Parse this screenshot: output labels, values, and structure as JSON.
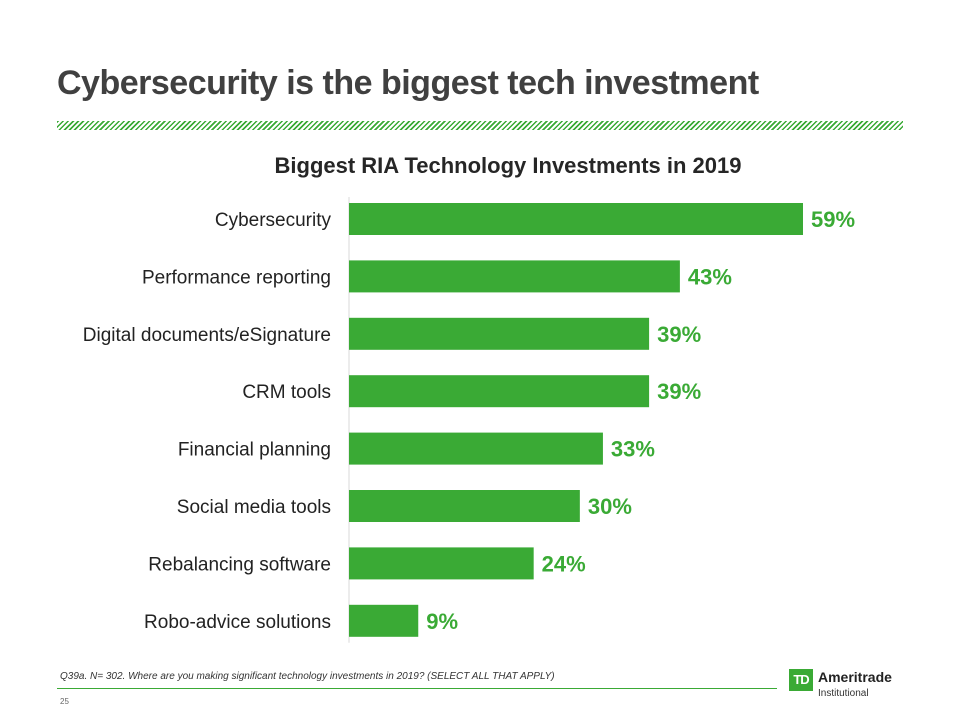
{
  "slide": {
    "title": "Cybersecurity is the biggest tech investment",
    "footnote": "Q39a. N= 302. Where are you making significant technology investments in 2019? (SELECT ALL THAT APPLY)",
    "page_number": "25"
  },
  "logo": {
    "mark": "TD",
    "name": "Ameritrade",
    "subtitle": "Institutional"
  },
  "colors": {
    "accent": "#3aaa35",
    "title": "#404040",
    "label": "#222222"
  },
  "chart_data": {
    "type": "bar",
    "orientation": "horizontal",
    "title": "Biggest RIA Technology Investments in 2019",
    "categories": [
      "Cybersecurity",
      "Performance reporting",
      "Digital documents/eSignature",
      "CRM tools",
      "Financial planning",
      "Social media tools",
      "Rebalancing software",
      "Robo-advice solutions"
    ],
    "values": [
      59,
      43,
      39,
      39,
      33,
      30,
      24,
      9
    ],
    "value_labels": [
      "59%",
      "43%",
      "39%",
      "39%",
      "33%",
      "30%",
      "24%",
      "9%"
    ],
    "unit": "%",
    "xlim": [
      0,
      59
    ],
    "grid": false,
    "legend": "none"
  }
}
